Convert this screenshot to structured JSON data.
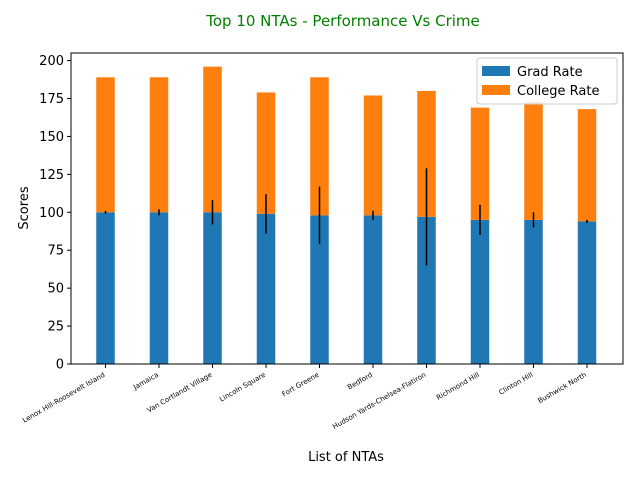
{
  "chart_data": {
    "type": "bar",
    "stacked": true,
    "title": "Top 10 NTAs - Performance Vs Crime",
    "title_color": "#008000",
    "xlabel": "List of NTAs",
    "ylabel": "Scores",
    "ylim": [
      0,
      205
    ],
    "yticks": [
      0,
      25,
      50,
      75,
      100,
      125,
      150,
      175,
      200
    ],
    "grid": false,
    "legend_position": "top-right",
    "categories": [
      "Lenox Hill-Roosevelt Island",
      "Jamaica",
      "Van Cortlandt Village",
      "Lincoln Square",
      "Fort Greene",
      "Bedford",
      "Hudson Yards-Chelsea-Flatiron",
      "Richmond Hill",
      "Clinton Hill",
      "Bushwick North"
    ],
    "series": [
      {
        "name": "Grad Rate",
        "color": "#1f77b4",
        "values": [
          100,
          100,
          100,
          99,
          98,
          98,
          97,
          95,
          95,
          94
        ],
        "error": [
          1,
          2,
          8,
          13,
          19,
          3,
          32,
          10,
          5,
          1
        ]
      },
      {
        "name": "College Rate",
        "color": "#ff7f0e",
        "values": [
          89,
          89,
          96,
          80,
          91,
          79,
          83,
          74,
          78,
          74
        ]
      }
    ]
  }
}
